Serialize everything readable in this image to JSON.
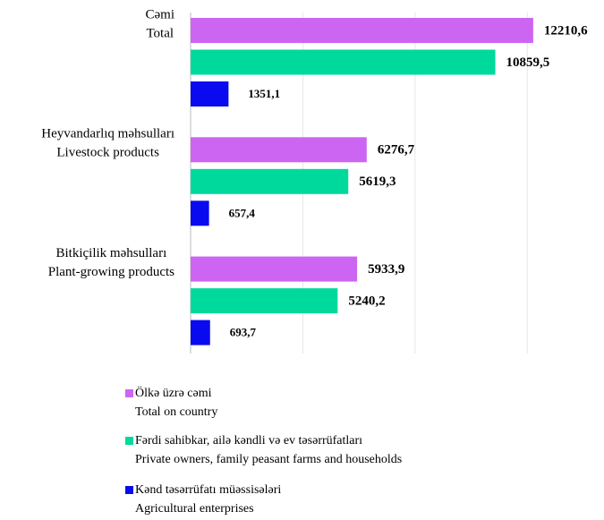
{
  "chart_data": {
    "type": "bar",
    "orientation": "horizontal",
    "categories": [
      [
        "Cəmi",
        "Total"
      ],
      [
        "Heyvandarlıq məhsulları",
        "Livestock products"
      ],
      [
        "Bitkiçilik məhsulları",
        "Plant-growing products"
      ]
    ],
    "series": [
      {
        "name": [
          "Ölkə üzrə cəmi",
          "Total on country"
        ],
        "color": "#cc66f2",
        "values": [
          12210.6,
          6276.7,
          5933.9
        ],
        "value_labels": [
          "12210,6",
          "6276,7",
          "5933,9"
        ]
      },
      {
        "name": [
          "Fərdi sahibkar, ailə kəndli və ev təsərrüfatları",
          "Private owners, family peasant farms and households"
        ],
        "color": "#00d99c",
        "values": [
          10859.5,
          5619.3,
          5240.2
        ],
        "value_labels": [
          "10859,5",
          "5619,3",
          "5240,2"
        ]
      },
      {
        "name": [
          "Kənd təsərrüfatı müəssisələri",
          "Agricultural enterprises"
        ],
        "color": "#0a0af0",
        "values": [
          1351.1,
          657.4,
          693.7
        ],
        "value_labels": [
          "1351,1",
          "657,4",
          "693,7"
        ]
      }
    ],
    "xlim": [
      0,
      14000
    ],
    "xticks": [
      0,
      4000,
      8000,
      12000
    ],
    "grid": true
  }
}
